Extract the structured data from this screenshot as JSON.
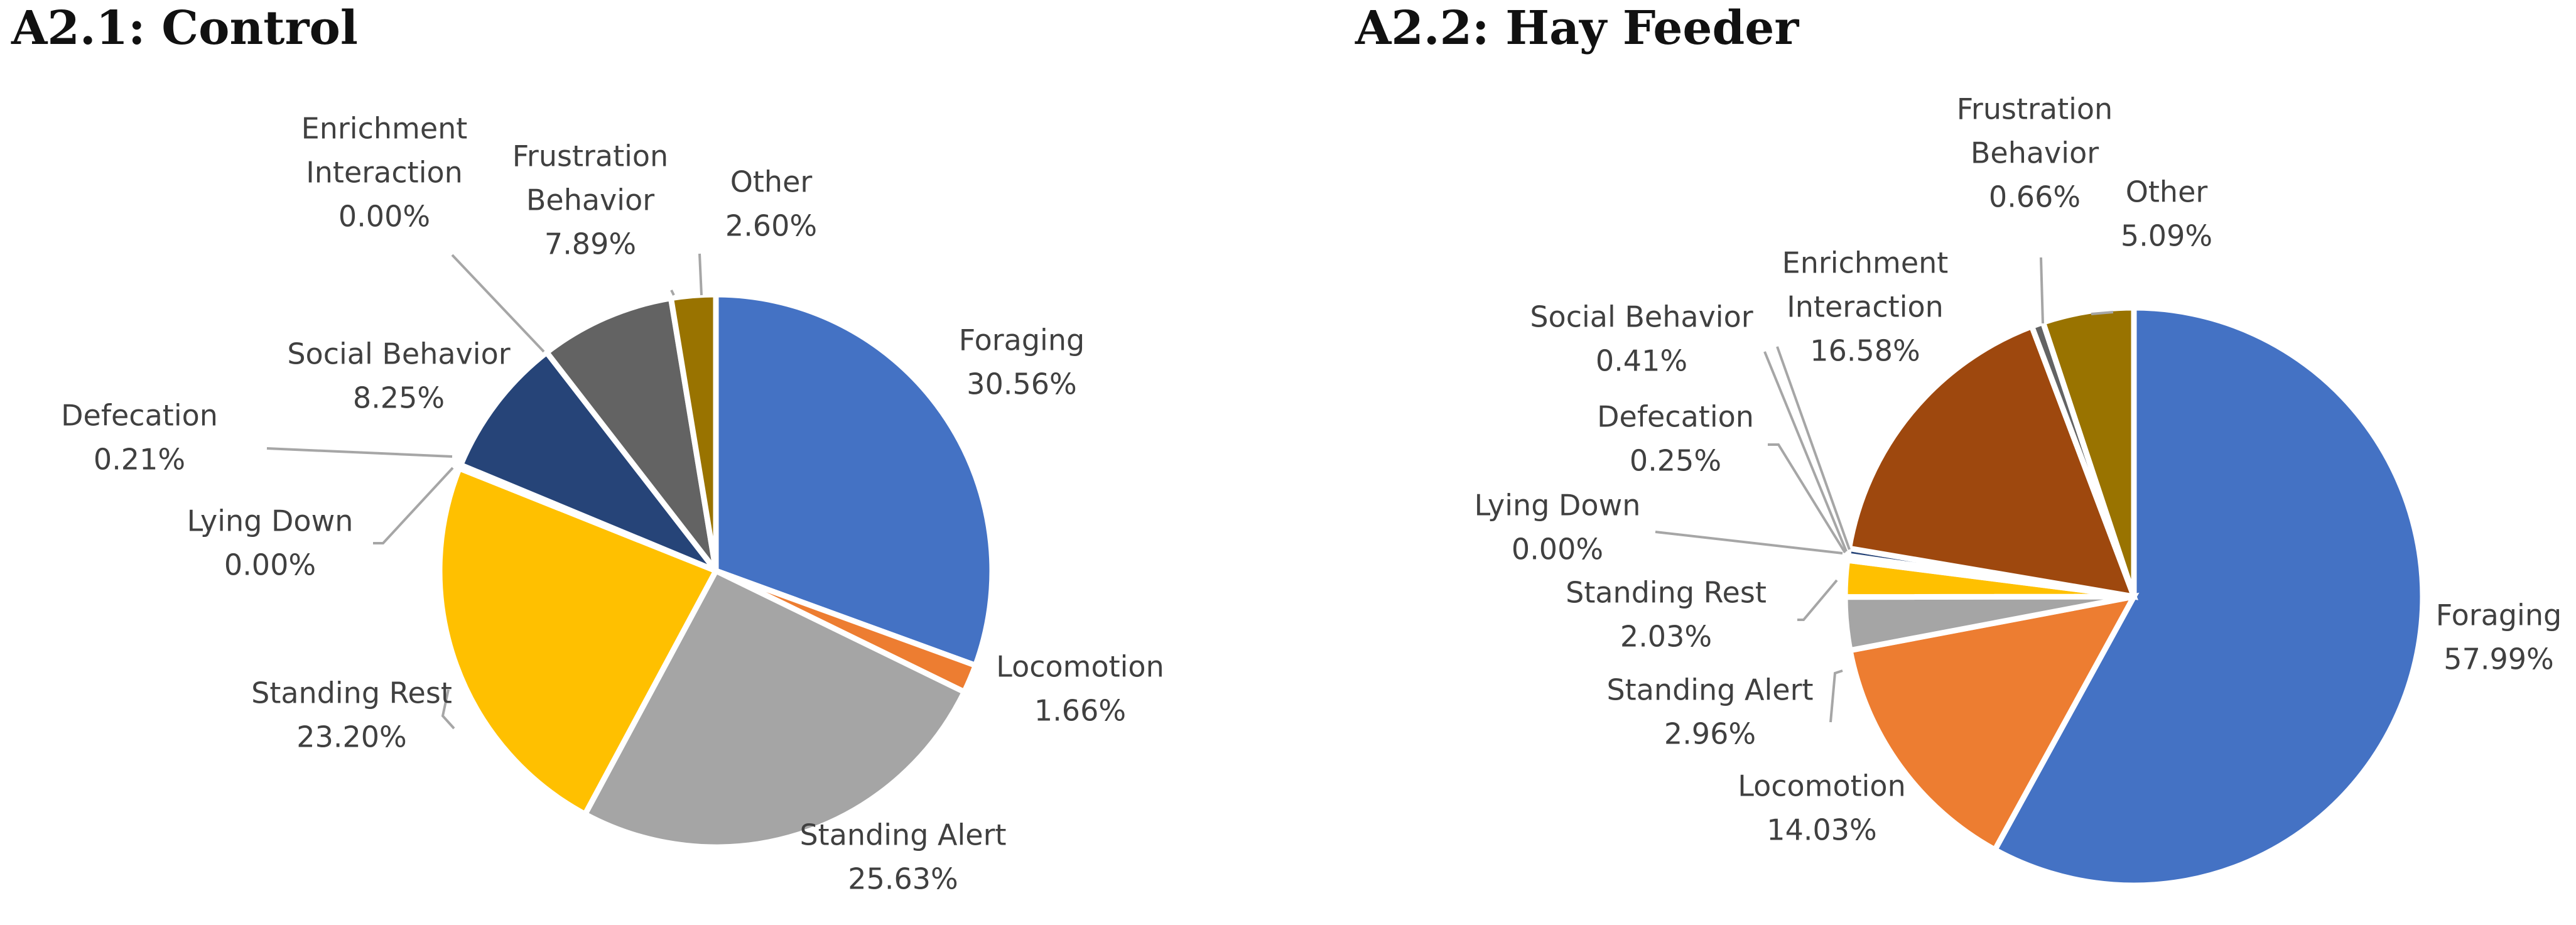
{
  "chart_data": [
    {
      "type": "pie",
      "title": "A2.1: Control",
      "slices": [
        {
          "label": [
            "Foraging"
          ],
          "value": "30.56%",
          "pct": 30.56,
          "color": "#4472C4"
        },
        {
          "label": [
            "Locomotion"
          ],
          "value": "1.66%",
          "pct": 1.66,
          "color": "#ED7D31"
        },
        {
          "label": [
            "Standing Alert"
          ],
          "value": "25.63%",
          "pct": 25.63,
          "color": "#A5A5A5"
        },
        {
          "label": [
            "Standing Rest"
          ],
          "value": "23.20%",
          "pct": 23.2,
          "color": "#FFC000"
        },
        {
          "label": [
            "Lying Down"
          ],
          "value": "0.00%",
          "pct": 0.0,
          "color": "#5B9BD5"
        },
        {
          "label": [
            "Defecation"
          ],
          "value": "0.21%",
          "pct": 0.21,
          "color": "#70AD47"
        },
        {
          "label": [
            "Social Behavior"
          ],
          "value": "8.25%",
          "pct": 8.25,
          "color": "#264478"
        },
        {
          "label": [
            "Enrichment",
            "Interaction"
          ],
          "value": "0.00%",
          "pct": 0.0,
          "color": "#9E480E"
        },
        {
          "label": [
            "Frustration",
            "Behavior"
          ],
          "value": "7.89%",
          "pct": 7.89,
          "color": "#636363"
        },
        {
          "label": [
            "Other"
          ],
          "value": "2.60%",
          "pct": 2.6,
          "color": "#997300"
        }
      ]
    },
    {
      "type": "pie",
      "title": "A2.2: Hay Feeder",
      "slices": [
        {
          "label": [
            "Foraging"
          ],
          "value": "57.99%",
          "pct": 57.99,
          "color": "#4472C4"
        },
        {
          "label": [
            "Locomotion"
          ],
          "value": "14.03%",
          "pct": 14.03,
          "color": "#ED7D31"
        },
        {
          "label": [
            "Standing Alert"
          ],
          "value": "2.96%",
          "pct": 2.96,
          "color": "#A5A5A5"
        },
        {
          "label": [
            "Standing Rest"
          ],
          "value": "2.03%",
          "pct": 2.03,
          "color": "#FFC000"
        },
        {
          "label": [
            "Lying Down"
          ],
          "value": "0.00%",
          "pct": 0.0,
          "color": "#5B9BD5"
        },
        {
          "label": [
            "Defecation"
          ],
          "value": "0.25%",
          "pct": 0.25,
          "color": "#70AD47"
        },
        {
          "label": [
            "Social Behavior"
          ],
          "value": "0.41%",
          "pct": 0.41,
          "color": "#264478"
        },
        {
          "label": [
            "Enrichment",
            "Interaction"
          ],
          "value": "16.58%",
          "pct": 16.58,
          "color": "#9E480E"
        },
        {
          "label": [
            "Frustration",
            "Behavior"
          ],
          "value": "0.66%",
          "pct": 0.66,
          "color": "#636363"
        },
        {
          "label": [
            "Other"
          ],
          "value": "5.09%",
          "pct": 5.09,
          "color": "#997300"
        }
      ]
    }
  ]
}
